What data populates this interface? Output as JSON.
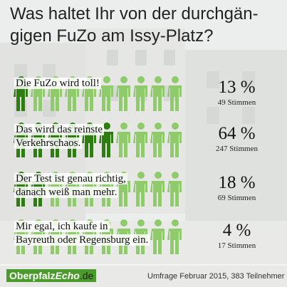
{
  "title": "Was haltet Ihr von der durchgän-\ngigen FuZo am Issy-Platz?",
  "chart_data": {
    "type": "bar",
    "categories": [
      "Die FuZo wird toll!",
      "Das wird das reinste Verkehrschaos.",
      "Der Test ist genau richtig, danach weiß man mehr.",
      "Mir egal, ich kaufe in Bayreuth oder Regensburg ein."
    ],
    "label_lines": [
      "Die FuZo wird toll!",
      "Das wird das reinste\nVerkehrschaos.",
      "Der Test ist genau richtig,\ndanach weiß man mehr.",
      "Mir egal, ich kaufe in\nBayreuth oder Regensburg ein."
    ],
    "values": [
      13,
      64,
      18,
      4
    ],
    "percent_labels": [
      "13 %",
      "64 %",
      "18 %",
      "4 %"
    ],
    "votes_labels": [
      "49 Stimmen",
      "247 Stimmen",
      "69 Stimmen",
      "17 Stimmen"
    ],
    "icon_total": 10,
    "icons_filled": [
      1,
      6,
      2,
      0
    ],
    "colors": {
      "filled": "#2f7d12",
      "empty": "#8fcb6a"
    }
  },
  "logo": {
    "main": "Oberpfalz",
    "echo": "Echo",
    "tld": ".de"
  },
  "footer": "Umfrage Februar 2015, 383 Teilnehmer"
}
